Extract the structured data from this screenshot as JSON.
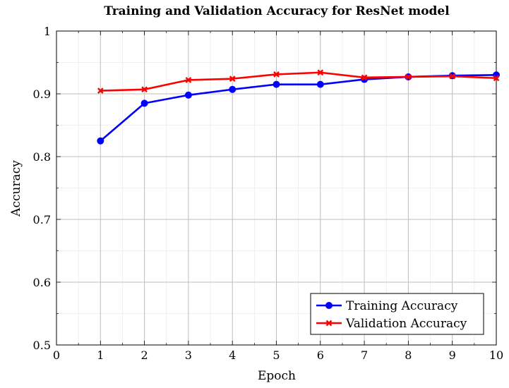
{
  "chart_data": {
    "type": "line",
    "title": "Training and Validation Accuracy for ResNet model",
    "xlabel": "Epoch",
    "ylabel": "Accuracy",
    "xlim": [
      0,
      10
    ],
    "ylim": [
      0.5,
      1
    ],
    "x_ticks": [
      "0",
      "1",
      "2",
      "3",
      "4",
      "5",
      "6",
      "7",
      "8",
      "9",
      "10"
    ],
    "y_ticks": [
      "0.5",
      "0.6",
      "0.7",
      "0.8",
      "0.9",
      "1"
    ],
    "grid": true,
    "legend_position": "bottom-right",
    "x": [
      1,
      2,
      3,
      4,
      5,
      6,
      7,
      8,
      9,
      10
    ],
    "series": [
      {
        "name": "Training Accuracy",
        "color": "#0000ff",
        "marker": "circle",
        "values": [
          0.825,
          0.885,
          0.898,
          0.907,
          0.915,
          0.915,
          0.923,
          0.927,
          0.929,
          0.93
        ]
      },
      {
        "name": "Validation Accuracy",
        "color": "#ff0000",
        "marker": "x",
        "values": [
          0.905,
          0.907,
          0.922,
          0.924,
          0.931,
          0.934,
          0.926,
          0.927,
          0.928,
          0.925
        ]
      }
    ]
  }
}
